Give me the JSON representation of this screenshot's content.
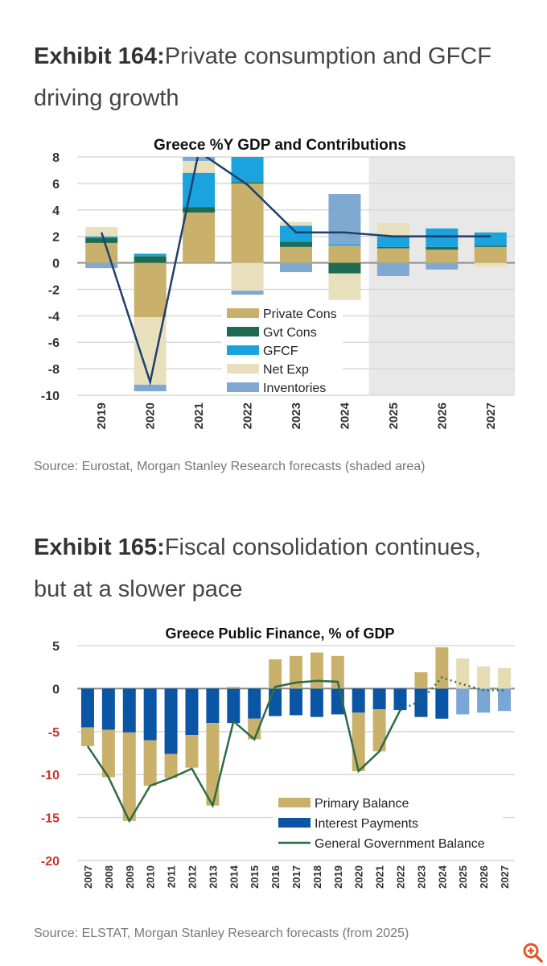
{
  "exhibits": [
    {
      "label": "Exhibit 164:",
      "title": "Private consumption and GFCF driving growth",
      "source": "Source: Eurostat, Morgan Stanley Research forecasts (shaded area)"
    },
    {
      "label": "Exhibit 165:",
      "title": "Fiscal consolidation continues, but at a slower pace",
      "source": "Source: ELSTAT, Morgan Stanley Research forecasts (from 2025)"
    }
  ],
  "chart_data": [
    {
      "type": "bar",
      "stacked": true,
      "title": "Greece %Y GDP and Contributions",
      "categories": [
        "2019",
        "2020",
        "2021",
        "2022",
        "2023",
        "2024",
        "2025",
        "2026",
        "2027"
      ],
      "forecast_shaded_from": "2025",
      "ylim": [
        -10,
        8
      ],
      "yticks": [
        8,
        6,
        4,
        2,
        0,
        -2,
        -4,
        -6,
        -8,
        -10
      ],
      "grid": true,
      "legend": "center-bottom",
      "series": [
        {
          "name": "Private Cons",
          "color": "#c9b06b",
          "values": [
            1.5,
            -4.1,
            3.8,
            6.0,
            1.2,
            1.3,
            1.1,
            1.0,
            1.2
          ]
        },
        {
          "name": "Gvt Cons",
          "color": "#1d6b52",
          "values": [
            0.4,
            0.5,
            0.4,
            0.1,
            0.4,
            -0.8,
            0.1,
            0.2,
            0.1
          ]
        },
        {
          "name": "GFCF",
          "color": "#1aa3dc",
          "values": [
            0.1,
            0.2,
            2.6,
            2.4,
            1.2,
            0.1,
            0.8,
            1.4,
            1.0
          ]
        },
        {
          "name": "Net Exp",
          "color": "#e8dfbd",
          "values": [
            0.7,
            -5.1,
            0.9,
            -2.1,
            0.3,
            -2.0,
            1.0,
            0.0,
            -0.3
          ]
        },
        {
          "name": "Inventories",
          "color": "#7fa9d1",
          "values": [
            -0.4,
            -0.5,
            0.3,
            -0.3,
            -0.7,
            3.8,
            -1.0,
            -0.5,
            0.0
          ]
        }
      ],
      "line": {
        "name": "GDP %Y",
        "color": "#1f3f6e",
        "values": [
          2.3,
          -9.0,
          8.4,
          5.9,
          2.3,
          2.3,
          2.0,
          2.0,
          2.0
        ]
      }
    },
    {
      "type": "bar",
      "stacked": true,
      "title": "Greece Public Finance, % of GDP",
      "categories": [
        "2007",
        "2008",
        "2009",
        "2010",
        "2011",
        "2012",
        "2013",
        "2014",
        "2015",
        "2016",
        "2017",
        "2018",
        "2019",
        "2020",
        "2021",
        "2022",
        "2023",
        "2024",
        "2025",
        "2026",
        "2027"
      ],
      "forecast_from": "2025",
      "ylim": [
        -20,
        5
      ],
      "yticks": [
        5,
        0,
        -5,
        -10,
        -15,
        -20
      ],
      "negative_tick_color": "#c8352b",
      "grid": true,
      "legend": "bottom-right",
      "series": [
        {
          "name": "Interest Payments",
          "color": "#0b56a4",
          "values": [
            -4.5,
            -4.8,
            -5.1,
            -6.0,
            -7.6,
            -5.4,
            -4.0,
            -4.0,
            -3.5,
            -3.2,
            -3.1,
            -3.3,
            -3.0,
            -2.8,
            -2.4,
            -2.5,
            -3.3,
            -3.5,
            -3.0,
            -2.8,
            -2.6
          ]
        },
        {
          "name": "Primary Balance",
          "color": "#c9b06b",
          "values": [
            -2.2,
            -5.5,
            -10.3,
            -5.3,
            -2.8,
            -3.8,
            -9.6,
            0.2,
            -2.4,
            3.4,
            3.8,
            4.2,
            3.8,
            -6.8,
            -4.9,
            0.0,
            1.9,
            4.8,
            3.5,
            2.6,
            2.4
          ]
        }
      ],
      "line": {
        "name": "General Government Balance",
        "color": "#2e6b46",
        "values": [
          -6.7,
          -10.3,
          -15.4,
          -11.3,
          -10.4,
          -9.3,
          -13.6,
          -3.8,
          -5.9,
          0.2,
          0.7,
          0.9,
          0.8,
          -9.6,
          -7.3,
          -2.5,
          -1.4,
          1.3,
          0.5,
          -0.2,
          -0.2
        ],
        "dotted_from": "2022"
      },
      "legend_order": [
        "Primary Balance",
        "Interest Payments",
        "General Government Balance"
      ]
    }
  ],
  "icons": {
    "zoom": "zoom-in-icon",
    "zoom_color": "#e8542a"
  }
}
